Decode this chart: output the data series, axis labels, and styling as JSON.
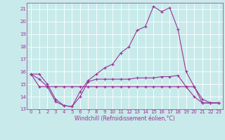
{
  "xlabel": "Windchill (Refroidissement éolien,°C)",
  "background_color": "#c8eaea",
  "grid_color": "#ffffff",
  "line_color": "#993399",
  "x_hours": [
    0,
    1,
    2,
    3,
    4,
    5,
    6,
    7,
    8,
    9,
    10,
    11,
    12,
    13,
    14,
    15,
    16,
    17,
    18,
    19,
    20,
    21,
    22,
    23
  ],
  "line1": [
    15.8,
    15.4,
    14.8,
    13.6,
    13.3,
    13.2,
    14.4,
    15.3,
    15.8,
    16.3,
    16.6,
    17.5,
    18.0,
    19.3,
    19.6,
    21.2,
    20.8,
    21.1,
    19.4,
    16.0,
    14.8,
    13.8,
    13.5,
    13.5
  ],
  "line2": [
    15.8,
    15.8,
    15.0,
    13.8,
    13.3,
    13.2,
    14.0,
    15.2,
    15.4,
    15.4,
    15.4,
    15.4,
    15.4,
    15.5,
    15.5,
    15.5,
    15.6,
    15.6,
    15.7,
    14.8,
    14.0,
    13.5,
    13.5,
    13.5
  ],
  "line3": [
    15.8,
    14.8,
    14.8,
    14.8,
    14.8,
    14.8,
    14.8,
    14.8,
    14.8,
    14.8,
    14.8,
    14.8,
    14.8,
    14.8,
    14.8,
    14.8,
    14.8,
    14.8,
    14.8,
    14.8,
    14.8,
    13.5,
    13.5,
    13.5
  ],
  "ylim": [
    13,
    21.5
  ],
  "yticks": [
    13,
    14,
    15,
    16,
    17,
    18,
    19,
    20,
    21
  ],
  "xtick_labels": [
    "0",
    "1",
    "2",
    "3",
    "4",
    "5",
    "6",
    "7",
    "8",
    "9",
    "10",
    "11",
    "12",
    "13",
    "14",
    "15",
    "16",
    "17",
    "18",
    "19",
    "20",
    "21",
    "22",
    "23"
  ],
  "tick_fontsize": 5,
  "xlabel_fontsize": 5.5,
  "linewidth": 0.8,
  "markersize": 3
}
